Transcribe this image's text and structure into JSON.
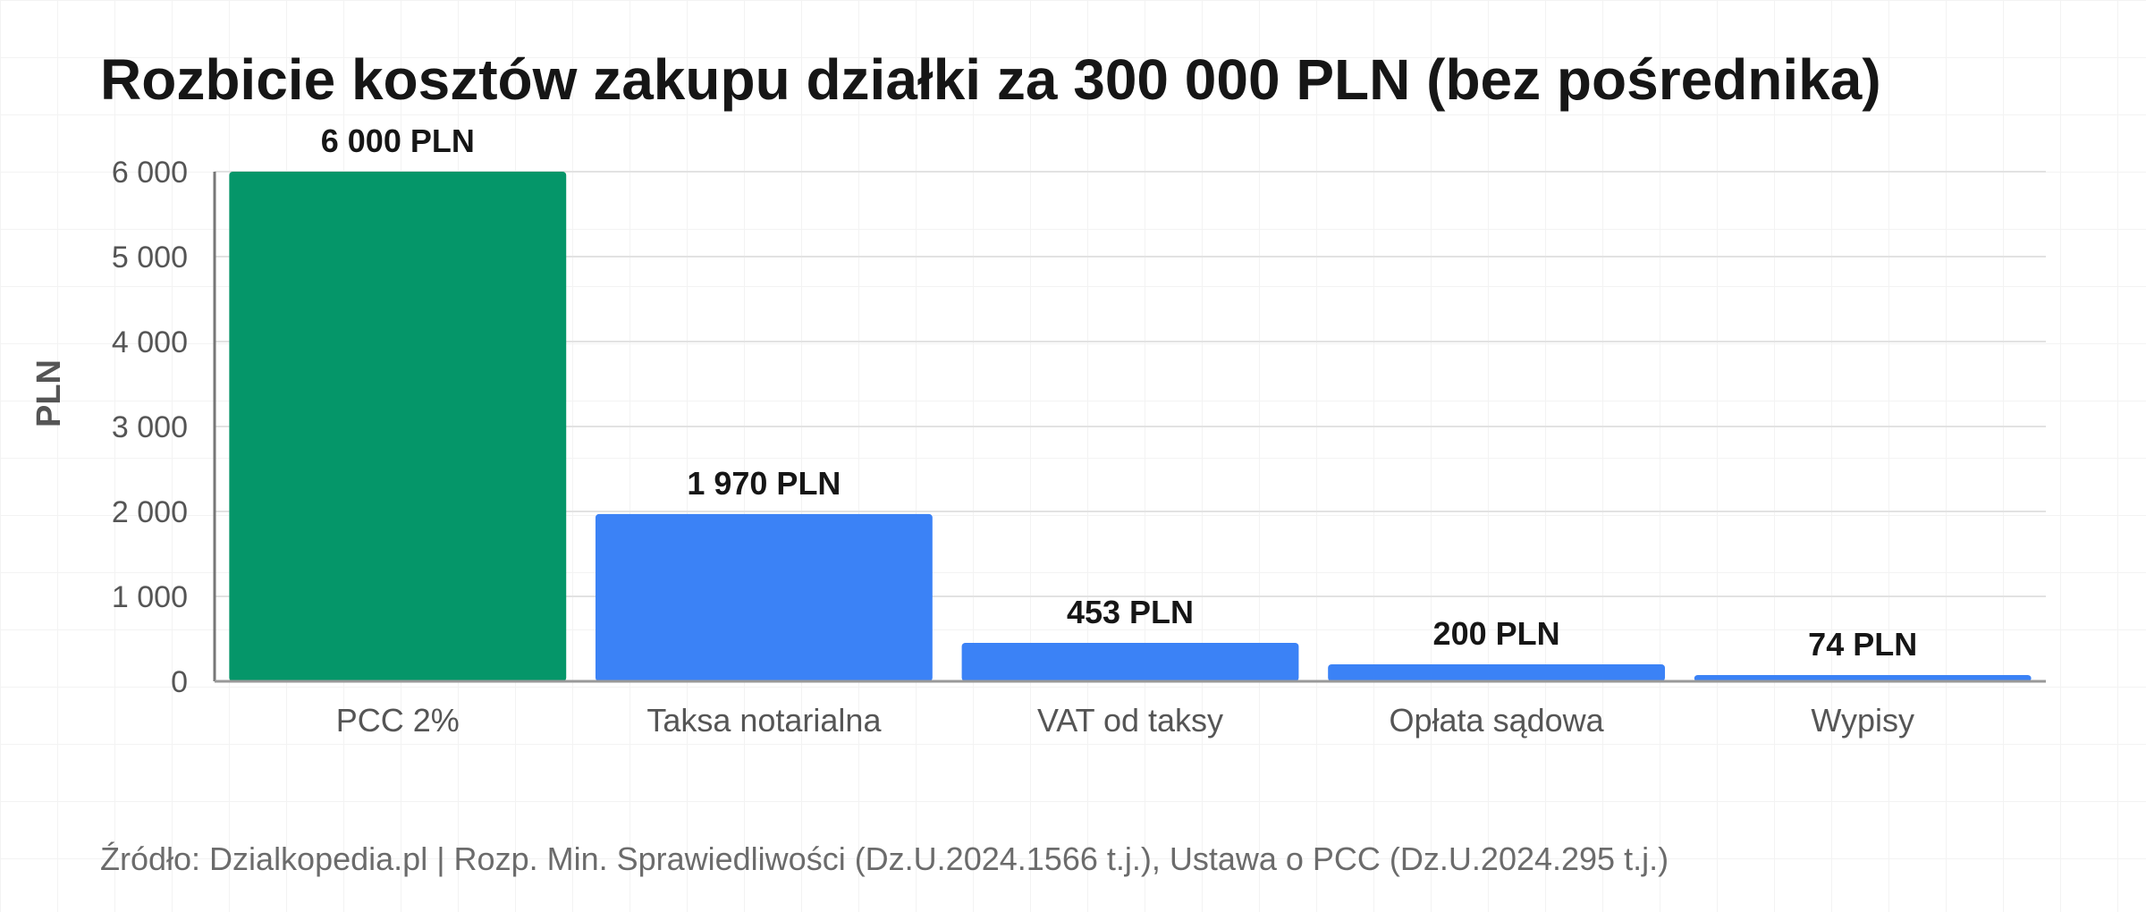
{
  "chart_data": {
    "type": "bar",
    "title": "Rozbicie kosztów zakupu działki za 300 000 PLN (bez pośrednika)",
    "ylabel": "PLN",
    "xlabel": "",
    "ylim": [
      0,
      6000
    ],
    "yticks": [
      0,
      1000,
      2000,
      3000,
      4000,
      5000,
      6000
    ],
    "ytick_labels": [
      "0",
      "1 000",
      "2 000",
      "3 000",
      "4 000",
      "5 000",
      "6 000"
    ],
    "grid": true,
    "categories": [
      "PCC 2%",
      "Taksa notarialna",
      "VAT od taksy",
      "Opłata sądowa",
      "Wypisy"
    ],
    "values": [
      6000,
      1970,
      453,
      200,
      74
    ],
    "value_labels": [
      "6 000 PLN",
      "1 970 PLN",
      "453 PLN",
      "200 PLN",
      "74 PLN"
    ],
    "colors": [
      "#059669",
      "#3b82f6",
      "#3b82f6",
      "#3b82f6",
      "#3b82f6"
    ]
  },
  "source": "Źródło: Dzialkopedia.pl | Rozp. Min. Sprawiedliwości (Dz.U.2024.1566 t.j.), Ustawa o PCC (Dz.U.2024.295 t.j.)"
}
